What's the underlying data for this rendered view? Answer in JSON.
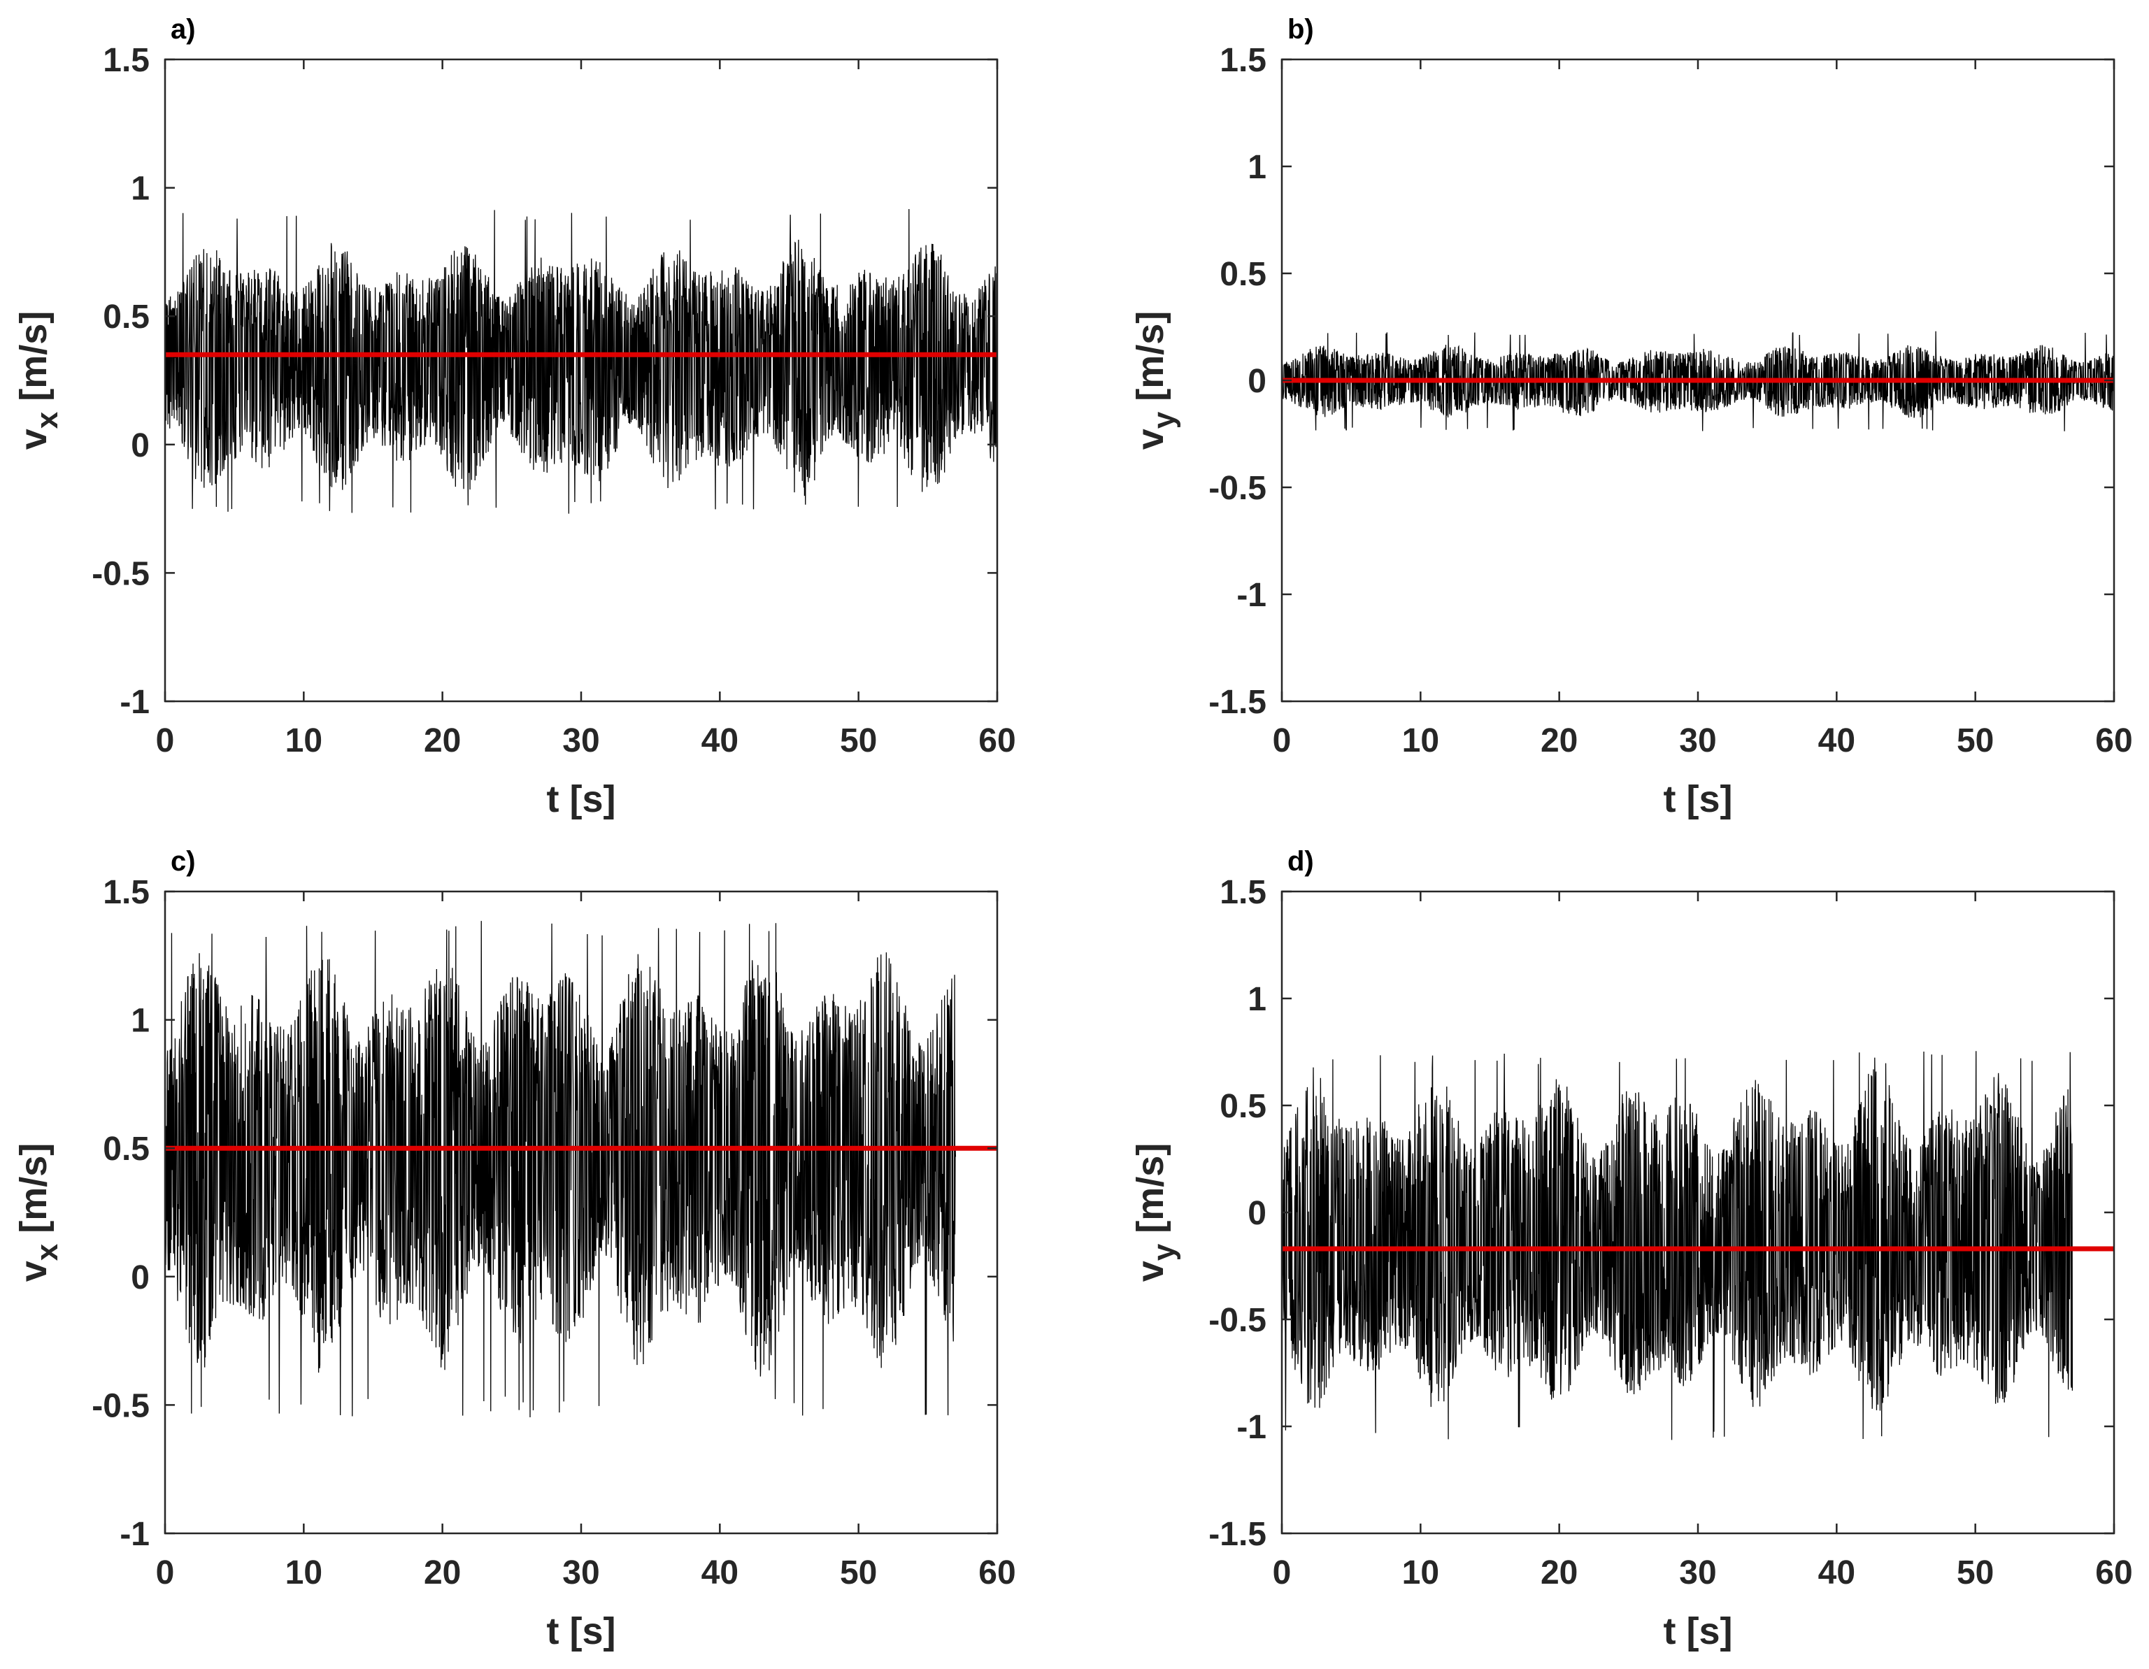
{
  "figure": {
    "colors": {
      "signal": "#000000",
      "mean": "#e00000",
      "axes": "#262626"
    }
  },
  "chart_data": [
    {
      "type": "line",
      "panel_label": "a)",
      "xlabel": "t [s]",
      "ylabel_main": "v",
      "ylabel_sub": "x",
      "ylabel_unit": " [m/s]",
      "xlim": [
        0,
        60
      ],
      "ylim": [
        -1,
        1.5
      ],
      "xticks": [
        0,
        10,
        20,
        30,
        40,
        50,
        60
      ],
      "yticks": [
        -1,
        -0.5,
        0,
        0.5,
        1,
        1.5
      ],
      "ytick_labels": [
        "-1",
        "-0.5",
        "0",
        "0.5",
        "1",
        "1.5"
      ],
      "grid": false,
      "series": [
        {
          "kind": "noisy-signal",
          "t_start": 0,
          "t_end": 60,
          "mean": 0.35,
          "typical_min": -0.22,
          "typical_max": 0.8,
          "peak_min": -0.27,
          "peak_max": 0.92
        },
        {
          "kind": "mean-line",
          "value": 0.35,
          "x_range": [
            0,
            60
          ]
        }
      ]
    },
    {
      "type": "line",
      "panel_label": "b)",
      "xlabel": "t [s]",
      "ylabel_main": "v",
      "ylabel_sub": "y",
      "ylabel_unit": " [m/s]",
      "xlim": [
        0,
        60
      ],
      "ylim": [
        -1.5,
        1.5
      ],
      "xticks": [
        0,
        10,
        20,
        30,
        40,
        50,
        60
      ],
      "yticks": [
        -1.5,
        -1,
        -0.5,
        0,
        0.5,
        1,
        1.5
      ],
      "ytick_labels": [
        "-1.5",
        "-1",
        "-0.5",
        "0",
        "0.5",
        "1",
        "1.5"
      ],
      "grid": false,
      "series": [
        {
          "kind": "noisy-signal",
          "t_start": 0,
          "t_end": 60,
          "mean": 0,
          "typical_min": -0.18,
          "typical_max": 0.17,
          "peak_min": -0.24,
          "peak_max": 0.23
        },
        {
          "kind": "mean-line",
          "value": 0,
          "x_range": [
            0,
            60
          ]
        }
      ]
    },
    {
      "type": "line",
      "panel_label": "c)",
      "xlabel": "t [s]",
      "ylabel_main": "v",
      "ylabel_sub": "x",
      "ylabel_unit": " [m/s]",
      "xlim": [
        0,
        60
      ],
      "ylim": [
        -1,
        1.5
      ],
      "xticks": [
        0,
        10,
        20,
        30,
        40,
        50,
        60
      ],
      "yticks": [
        -1,
        -0.5,
        0,
        0.5,
        1,
        1.5
      ],
      "ytick_labels": [
        "-1",
        "-0.5",
        "0",
        "0.5",
        "1",
        "1.5"
      ],
      "grid": false,
      "series": [
        {
          "kind": "noisy-signal",
          "t_start": 0,
          "t_end": 57,
          "mean": 0.5,
          "typical_min": -0.4,
          "typical_max": 1.3,
          "peak_min": -0.55,
          "peak_max": 1.39
        },
        {
          "kind": "mean-line",
          "value": 0.5,
          "x_range": [
            0,
            60
          ]
        }
      ]
    },
    {
      "type": "line",
      "panel_label": "d)",
      "xlabel": "t [s]",
      "ylabel_main": "v",
      "ylabel_sub": "y",
      "ylabel_unit": " [m/s]",
      "xlim": [
        0,
        60
      ],
      "ylim": [
        -1.5,
        1.5
      ],
      "xticks": [
        0,
        10,
        20,
        30,
        40,
        50,
        60
      ],
      "yticks": [
        -1.5,
        -1,
        -0.5,
        0,
        0.5,
        1,
        1.5
      ],
      "ytick_labels": [
        "-1.5",
        "-1",
        "-0.5",
        "0",
        "0.5",
        "1",
        "1.5"
      ],
      "grid": false,
      "series": [
        {
          "kind": "noisy-signal",
          "t_start": 0,
          "t_end": 57,
          "mean": -0.17,
          "typical_min": -0.95,
          "typical_max": 0.7,
          "peak_min": -1.07,
          "peak_max": 0.76
        },
        {
          "kind": "mean-line",
          "value": -0.17,
          "x_range": [
            0,
            60
          ]
        }
      ]
    }
  ]
}
